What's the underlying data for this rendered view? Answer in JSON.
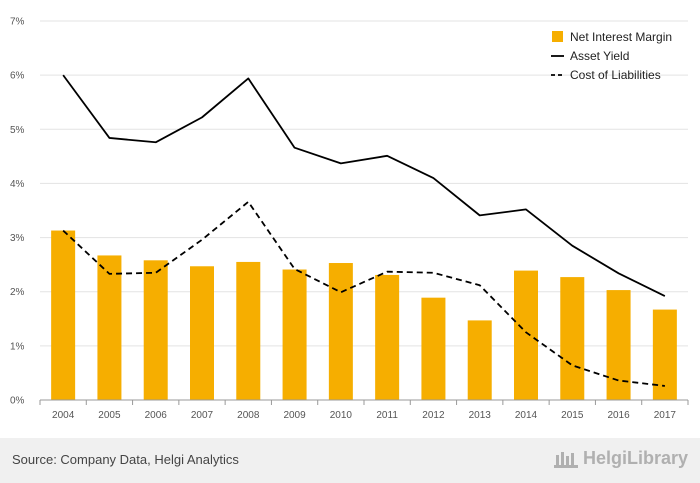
{
  "chart_data": {
    "type": "bar",
    "categories": [
      "2004",
      "2005",
      "2006",
      "2007",
      "2008",
      "2009",
      "2010",
      "2011",
      "2012",
      "2013",
      "2014",
      "2015",
      "2016",
      "2017"
    ],
    "series": [
      {
        "name": "Net Interest Margin",
        "kind": "bar",
        "color": "#f6ae00",
        "values": [
          3.13,
          2.67,
          2.58,
          2.47,
          2.55,
          2.41,
          2.53,
          2.31,
          1.89,
          1.47,
          2.39,
          2.27,
          2.03,
          1.67
        ]
      },
      {
        "name": "Asset Yield",
        "kind": "line",
        "style": "solid",
        "color": "#000000",
        "values": [
          6.0,
          4.84,
          4.76,
          5.22,
          5.94,
          4.66,
          4.37,
          4.51,
          4.1,
          3.41,
          3.52,
          2.85,
          2.34,
          1.92
        ]
      },
      {
        "name": "Cost of Liabilities",
        "kind": "line",
        "style": "dashed",
        "color": "#000000",
        "values": [
          3.13,
          2.33,
          2.35,
          2.96,
          3.66,
          2.42,
          1.99,
          2.37,
          2.35,
          2.12,
          1.25,
          0.64,
          0.36,
          0.26
        ]
      }
    ],
    "y_ticks": [
      "0%",
      "1%",
      "2%",
      "3%",
      "4%",
      "5%",
      "6%",
      "7%"
    ],
    "ylim": [
      0,
      7
    ],
    "grid": true,
    "legend_position": "top-right"
  },
  "footer": {
    "source": "Source: Company Data, Helgi Analytics",
    "brand": "HelgiLibrary"
  }
}
